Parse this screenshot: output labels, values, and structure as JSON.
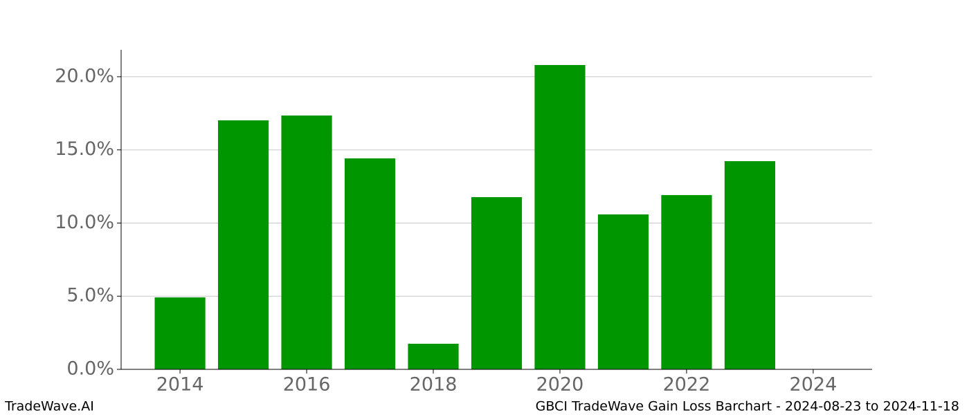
{
  "chart_data": {
    "type": "bar",
    "x": [
      2014,
      2015,
      2016,
      2017,
      2018,
      2019,
      2020,
      2021,
      2022,
      2023
    ],
    "values": [
      4.92,
      17.02,
      17.35,
      14.42,
      1.75,
      11.77,
      20.8,
      10.59,
      11.91,
      14.23
    ],
    "color": "#009600",
    "xlim": [
      2013.07,
      2024.93
    ],
    "xticks": [
      2014,
      2016,
      2018,
      2020,
      2022,
      2024
    ],
    "ylim": [
      0,
      21.84
    ],
    "yticks": [
      {
        "value": 0,
        "label": "0.0%"
      },
      {
        "value": 5,
        "label": "5.0%"
      },
      {
        "value": 10,
        "label": "10.0%"
      },
      {
        "value": 15,
        "label": "15.0%"
      },
      {
        "value": 20,
        "label": "20.0%"
      }
    ],
    "grid": true
  },
  "footer": {
    "left": "TradeWave.AI",
    "right": "GBCI TradeWave Gain Loss Barchart - 2024-08-23 to 2024-11-18"
  }
}
